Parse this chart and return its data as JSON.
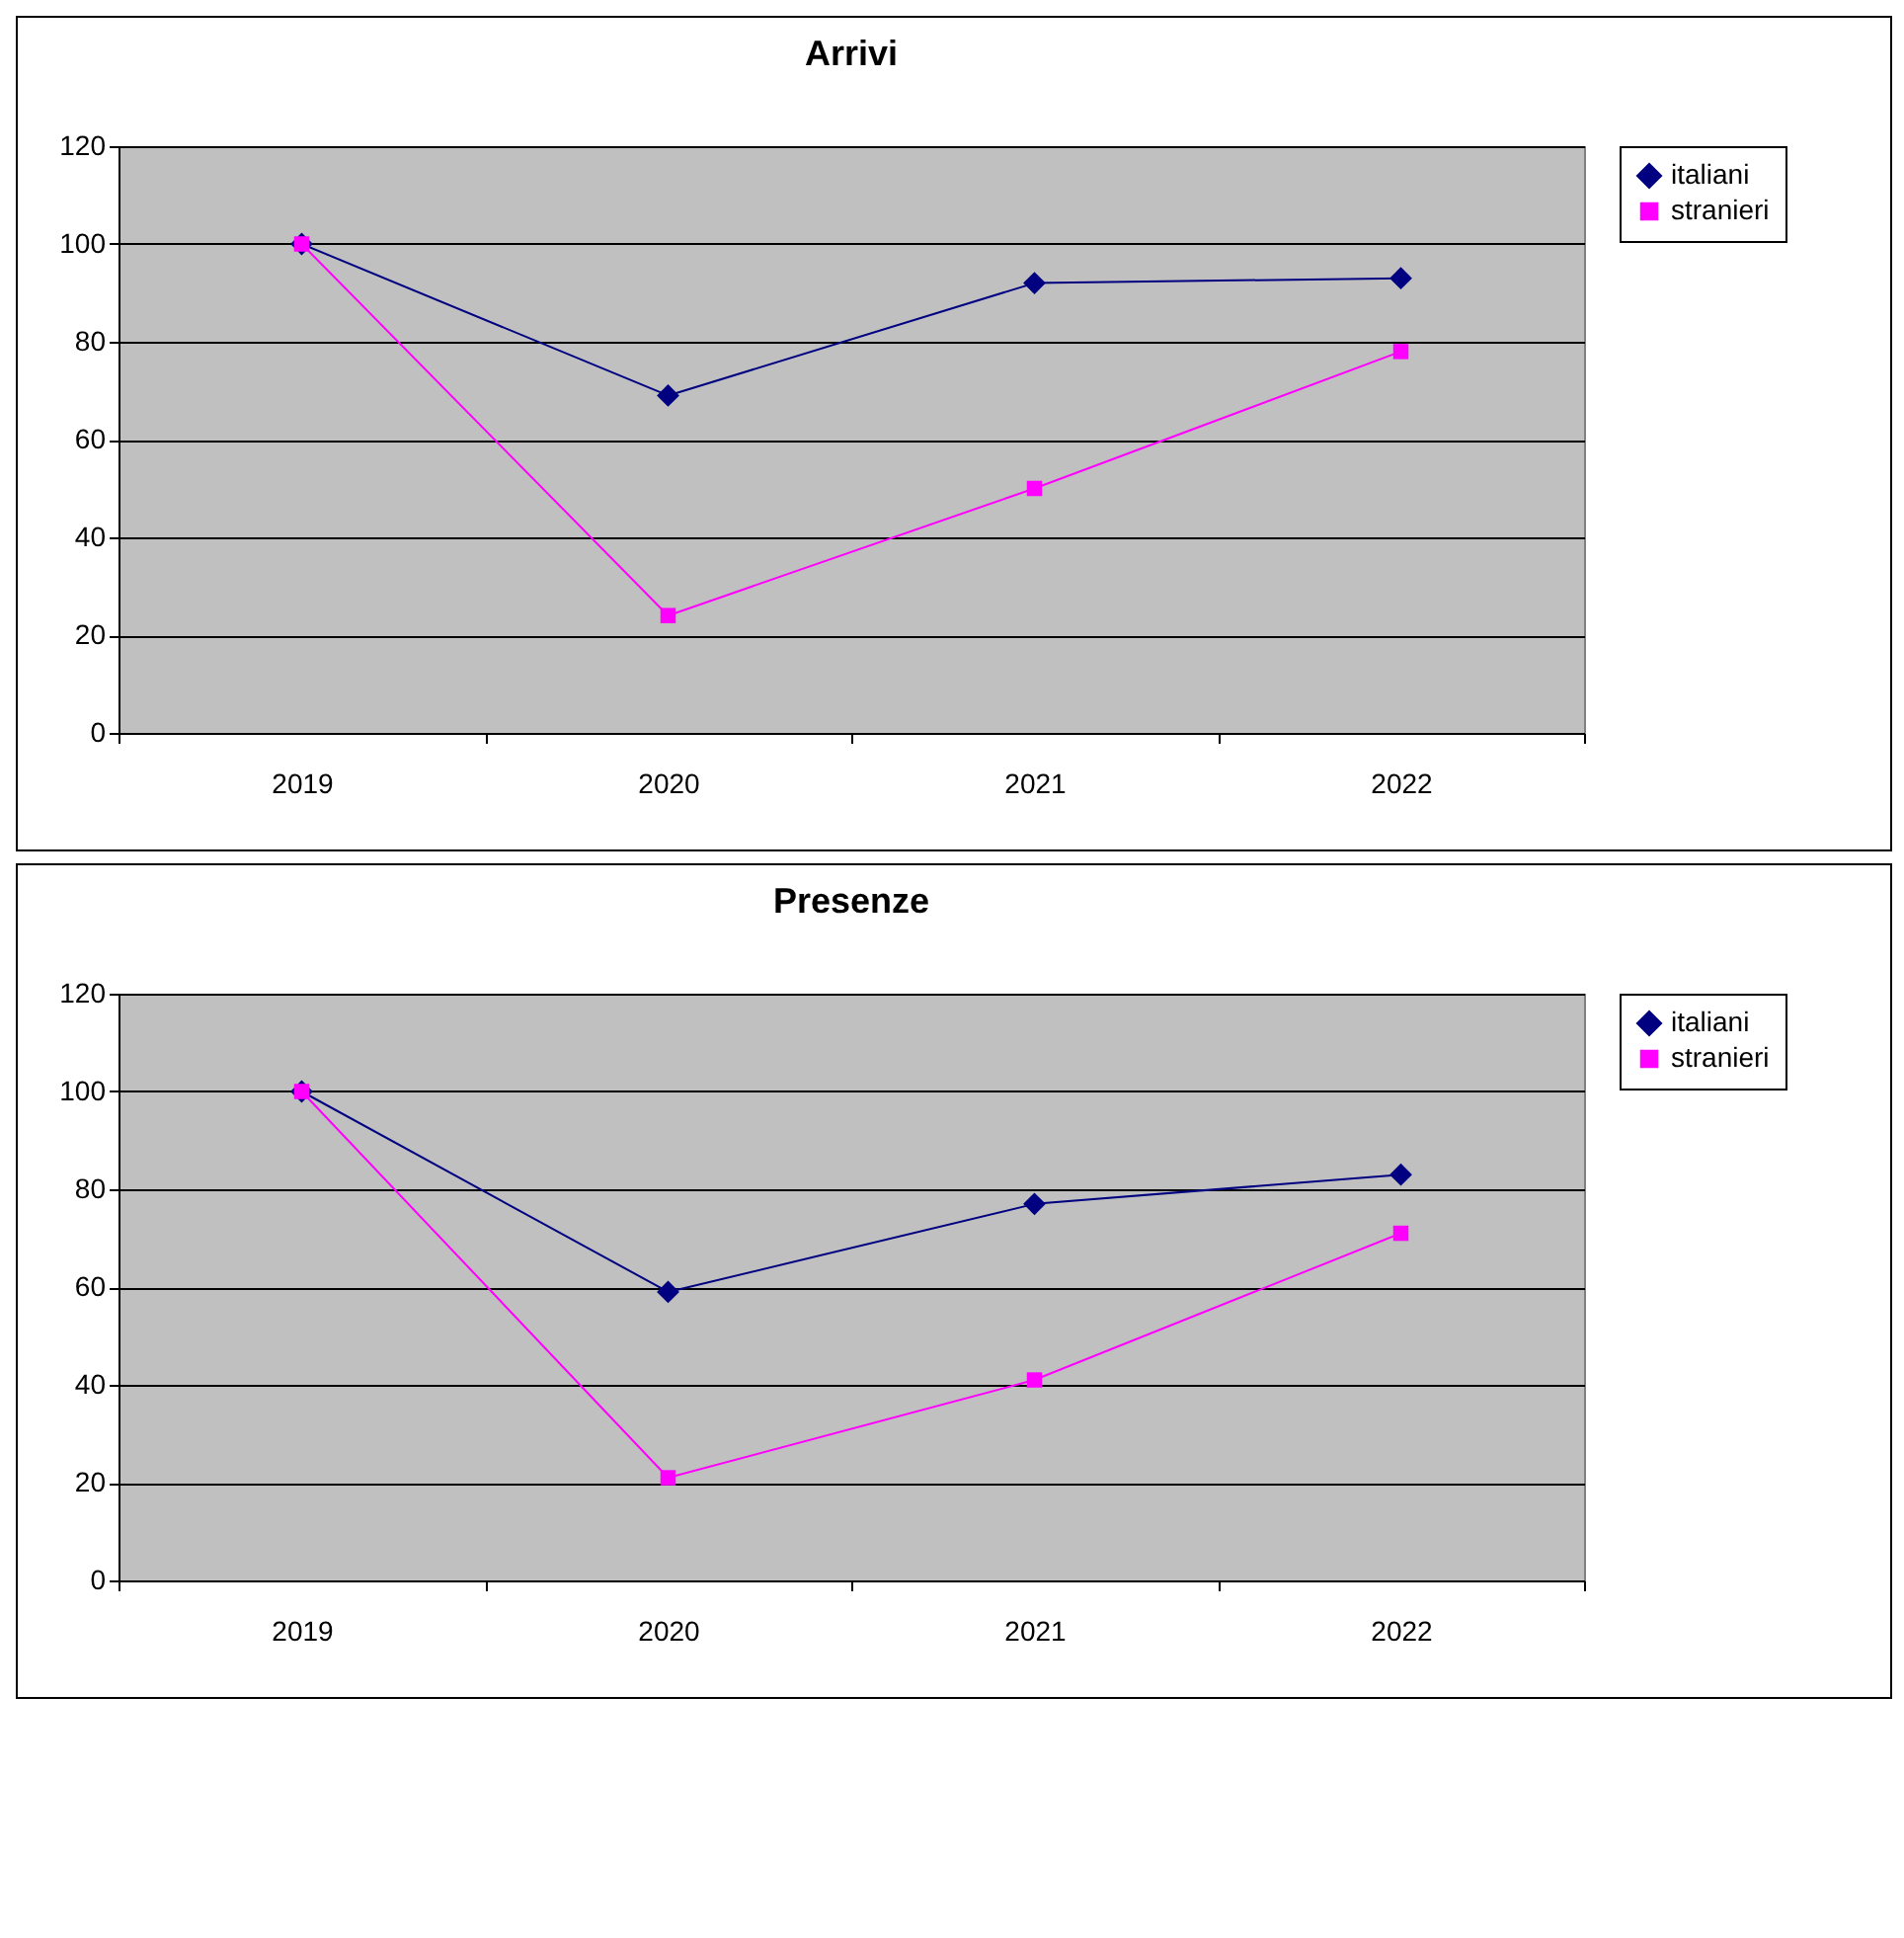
{
  "chart_data": [
    {
      "type": "line",
      "title": "Arrivi",
      "categories": [
        "2019",
        "2020",
        "2021",
        "2022"
      ],
      "ylim": [
        0,
        120
      ],
      "yticks": [
        0,
        20,
        40,
        60,
        80,
        100,
        120
      ],
      "grid": "y",
      "legend": "right",
      "line_style": "solid",
      "series": [
        {
          "name": "italiani",
          "color": "#000080",
          "marker": "diamond",
          "values": [
            100,
            69,
            92,
            93
          ]
        },
        {
          "name": "stranieri",
          "color": "#ff00ff",
          "marker": "square",
          "values": [
            100,
            24,
            50,
            78
          ]
        }
      ]
    },
    {
      "type": "line",
      "title": "Presenze",
      "categories": [
        "2019",
        "2020",
        "2021",
        "2022"
      ],
      "ylim": [
        0,
        120
      ],
      "yticks": [
        0,
        20,
        40,
        60,
        80,
        100,
        120
      ],
      "grid": "y",
      "legend": "right",
      "line_style": "solid",
      "series": [
        {
          "name": "italiani",
          "color": "#000080",
          "marker": "diamond",
          "values": [
            100,
            59,
            77,
            83
          ]
        },
        {
          "name": "stranieri",
          "color": "#ff00ff",
          "marker": "square",
          "values": [
            100,
            21,
            41,
            71
          ]
        }
      ]
    }
  ]
}
